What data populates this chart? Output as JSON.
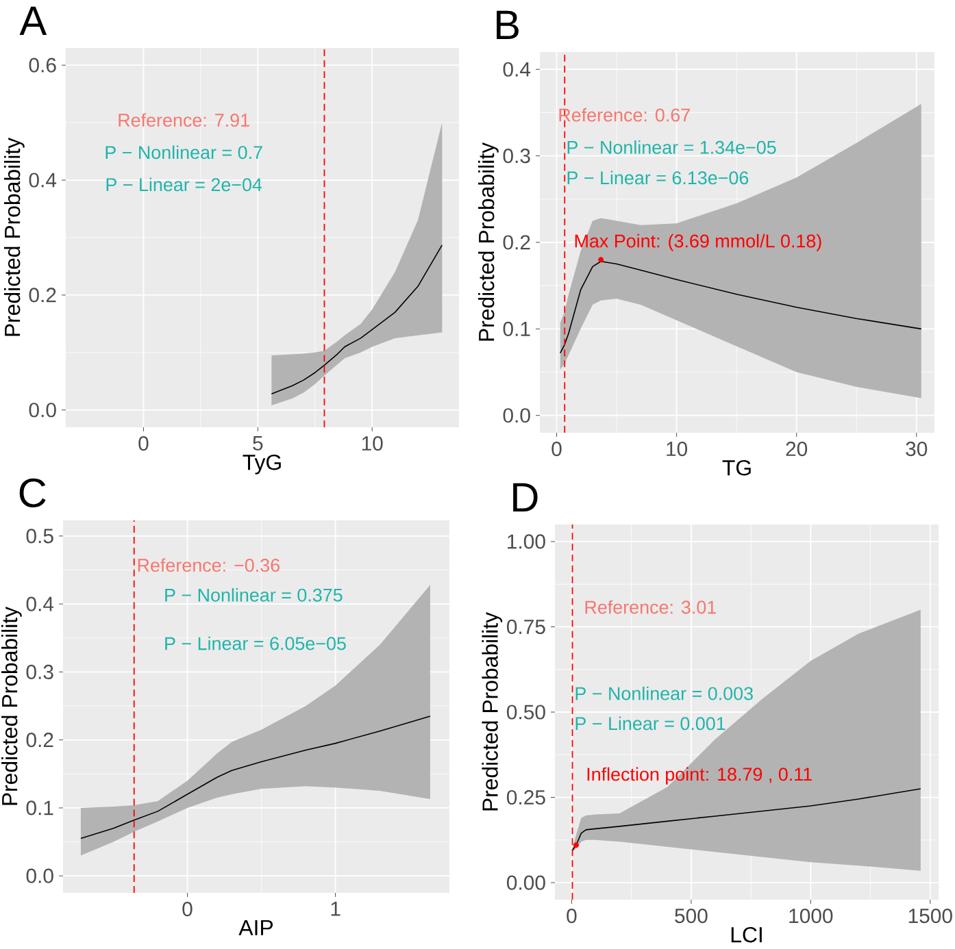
{
  "chart_data": [
    {
      "type": "line",
      "title": "A",
      "xlabel": "TyG",
      "ylabel": "Predicted Probability",
      "xlim": [
        -3.4,
        13.8
      ],
      "ylim": [
        -0.03,
        0.63
      ],
      "xticks": [
        0,
        5,
        10
      ],
      "yticks": [
        {
          "value": 0,
          "label": "0.0"
        },
        {
          "value": 0.2,
          "label": "0.2"
        },
        {
          "value": 0.4,
          "label": "0.4"
        },
        {
          "value": 0.6,
          "label": "0.6"
        }
      ],
      "grid": true,
      "marker": "none",
      "series": [
        {
          "color": "#000000",
          "x": [
            5.6,
            6.5,
            7,
            7.5,
            7.91,
            8.5,
            8.8,
            9.5,
            10,
            11,
            12,
            13.06
          ],
          "values": [
            0.028,
            0.042,
            0.052,
            0.065,
            0.078,
            0.098,
            0.11,
            0.125,
            0.14,
            0.17,
            0.215,
            0.287
          ],
          "lower": [
            0.008,
            0.02,
            0.03,
            0.045,
            0.06,
            0.08,
            0.09,
            0.1,
            0.11,
            0.125,
            0.13,
            0.135
          ],
          "upper": [
            0.095,
            0.097,
            0.098,
            0.1,
            0.103,
            0.12,
            0.13,
            0.15,
            0.175,
            0.24,
            0.33,
            0.5
          ]
        }
      ],
      "ref_lines": [
        {
          "axis": "x",
          "value": 7.91,
          "color": "#ff0000",
          "line_style": "dashed"
        }
      ],
      "annotations": [
        "Reference: 7.91",
        "P − Nonlinear = 0.7",
        "P − Linear =  2e−04"
      ]
    },
    {
      "type": "line",
      "title": "B",
      "xlabel": "TG",
      "ylabel": "Predicted Probability",
      "xlim": [
        -1.4,
        31.5
      ],
      "ylim": [
        -0.02,
        0.42
      ],
      "xticks": [
        0,
        10,
        20,
        30
      ],
      "yticks": [
        {
          "value": 0,
          "label": "0.0"
        },
        0.1,
        0.2,
        0.3,
        0.4
      ],
      "grid": true,
      "marker": "none",
      "series": [
        {
          "color": "#000000",
          "x": [
            0.3,
            0.67,
            1,
            2,
            3,
            3.69,
            5,
            7,
            10,
            15,
            20,
            25,
            30.4
          ],
          "values": [
            0.072,
            0.082,
            0.095,
            0.145,
            0.172,
            0.178,
            0.175,
            0.168,
            0.157,
            0.14,
            0.125,
            0.112,
            0.1
          ],
          "lower": [
            0.053,
            0.06,
            0.07,
            0.1,
            0.128,
            0.133,
            0.135,
            0.128,
            0.11,
            0.08,
            0.05,
            0.033,
            0.02
          ],
          "upper": [
            0.107,
            0.12,
            0.14,
            0.19,
            0.225,
            0.228,
            0.225,
            0.22,
            0.222,
            0.245,
            0.275,
            0.315,
            0.36
          ]
        },
        {
          "type": "scatter",
          "color": "#ff0000",
          "marker": "circle",
          "x": [
            3.69
          ],
          "values": [
            0.18
          ]
        }
      ],
      "ref_lines": [
        {
          "axis": "x",
          "value": 0.67,
          "label": "Reference: 0.67",
          "color": "#ff0000",
          "line_style": "dashed"
        }
      ],
      "annotations": [
        "P − Nonlinear = 1.34e−05",
        "P − Linear =  6.13e−06",
        {
          "text": "Max Point: (3.69 mmol/L 0.18)",
          "x": 3.69,
          "y": 0.18
        }
      ]
    },
    {
      "type": "line",
      "title": "C",
      "xlabel": "AIP",
      "ylabel": "Predicted Probability",
      "xlim": [
        -0.84,
        1.77
      ],
      "ylim": [
        -0.025,
        0.523
      ],
      "xticks": [
        0,
        1
      ],
      "yticks": [
        {
          "value": 0,
          "label": "0.0"
        },
        0.1,
        0.2,
        0.3,
        0.4,
        0.5
      ],
      "grid": true,
      "marker": "none",
      "series": [
        {
          "color": "#000000",
          "x": [
            -0.72,
            -0.5,
            -0.36,
            -0.2,
            0,
            0.2,
            0.3,
            0.5,
            0.8,
            1,
            1.3,
            1.64
          ],
          "values": [
            0.055,
            0.07,
            0.082,
            0.095,
            0.12,
            0.145,
            0.155,
            0.168,
            0.185,
            0.195,
            0.213,
            0.235
          ],
          "lower": [
            0.03,
            0.05,
            0.065,
            0.08,
            0.1,
            0.115,
            0.12,
            0.128,
            0.132,
            0.13,
            0.125,
            0.113
          ],
          "upper": [
            0.1,
            0.102,
            0.104,
            0.11,
            0.14,
            0.18,
            0.197,
            0.215,
            0.25,
            0.28,
            0.34,
            0.428
          ]
        }
      ],
      "ref_lines": [
        {
          "axis": "x",
          "value": -0.36,
          "label": "Reference: −0.36",
          "color": "#ff0000",
          "line_style": "dashed"
        }
      ],
      "annotations": [
        "P − Nonlinear = 0.375",
        "P − Linear =  6.05e−05"
      ]
    },
    {
      "type": "line",
      "title": "D",
      "xlabel": "LCI",
      "ylabel": "Predicted Probability",
      "xlim": [
        -70,
        1535
      ],
      "ylim": [
        -0.05,
        1.05
      ],
      "xticks": [
        0,
        500,
        1000,
        1500
      ],
      "yticks": [
        {
          "value": 0,
          "label": "0.00"
        },
        0.25,
        {
          "value": 0.5,
          "label": "0.50"
        },
        0.75,
        {
          "value": 1,
          "label": "1.00"
        }
      ],
      "grid": true,
      "marker": "none",
      "series": [
        {
          "color": "#000000",
          "x": [
            3,
            18.79,
            40,
            60,
            100,
            200,
            400,
            600,
            800,
            1000,
            1200,
            1460
          ],
          "values": [
            0.095,
            0.11,
            0.145,
            0.155,
            0.158,
            0.165,
            0.18,
            0.195,
            0.21,
            0.225,
            0.245,
            0.275
          ],
          "lower": [
            0.09,
            0.1,
            0.12,
            0.125,
            0.125,
            0.12,
            0.105,
            0.09,
            0.075,
            0.06,
            0.05,
            0.035
          ],
          "upper": [
            0.1,
            0.14,
            0.19,
            0.197,
            0.2,
            0.203,
            0.28,
            0.42,
            0.54,
            0.65,
            0.73,
            0.8
          ]
        },
        {
          "type": "scatter",
          "color": "#ff0000",
          "marker": "circle",
          "x": [
            18.79
          ],
          "values": [
            0.11
          ]
        }
      ],
      "ref_lines": [
        {
          "axis": "x",
          "value": 3.01,
          "label": "Reference: 3.01",
          "color": "#ff0000",
          "line_style": "dashed"
        }
      ],
      "annotations": [
        "P − Nonlinear = 0.003",
        "P − Linear =  0.001",
        "Inflection point: 18.79 , 0.11"
      ]
    }
  ]
}
